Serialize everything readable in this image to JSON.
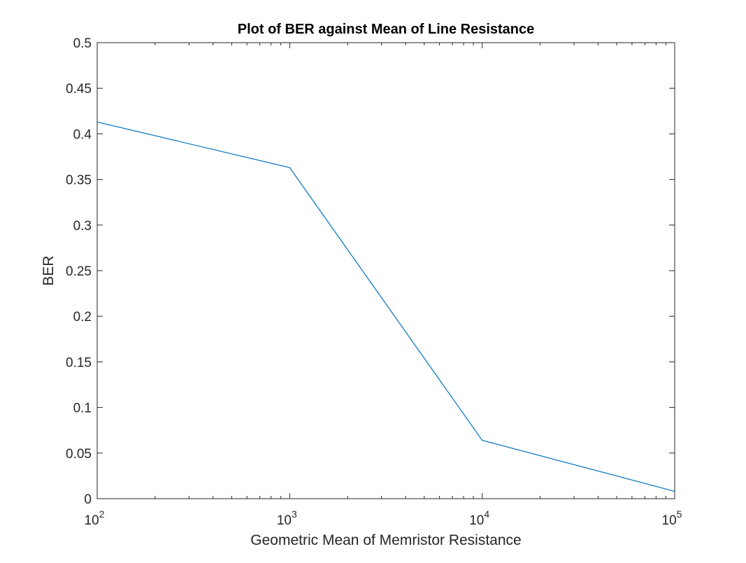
{
  "chart_data": {
    "type": "line",
    "title": "Plot of BER against Mean of Line Resistance",
    "xlabel": "Geometric Mean of Memristor Resistance",
    "ylabel": "BER",
    "xscale": "log",
    "xlim": [
      100,
      100000
    ],
    "ylim": [
      0,
      0.5
    ],
    "x_ticks": [
      {
        "base": "10",
        "exp": "2"
      },
      {
        "base": "10",
        "exp": "3"
      },
      {
        "base": "10",
        "exp": "4"
      },
      {
        "base": "10",
        "exp": "5"
      }
    ],
    "x_tick_values": [
      100,
      1000,
      10000,
      100000
    ],
    "y_ticks": [
      "0",
      "0.05",
      "0.1",
      "0.15",
      "0.2",
      "0.25",
      "0.3",
      "0.35",
      "0.4",
      "0.45",
      "0.5"
    ],
    "y_tick_values": [
      0,
      0.05,
      0.1,
      0.15,
      0.2,
      0.25,
      0.3,
      0.35,
      0.4,
      0.45,
      0.5
    ],
    "grid": false,
    "series": [
      {
        "x": [
          100,
          1000,
          10000,
          100000
        ],
        "y": [
          0.413,
          0.363,
          0.064,
          0.008
        ],
        "color": "#0072BD"
      }
    ]
  }
}
